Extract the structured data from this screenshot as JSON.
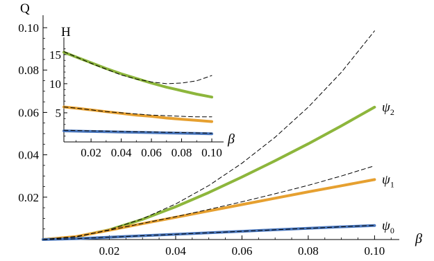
{
  "chart_data": [
    {
      "id": "main",
      "type": "line",
      "xlabel": "β",
      "ylabel": "Q",
      "xlim": [
        0,
        0.11
      ],
      "ylim": [
        0,
        0.105
      ],
      "xticks": [
        0.02,
        0.04,
        0.06,
        0.08,
        0.1
      ],
      "xtick_labels": [
        "0.02",
        "0.04",
        "0.06",
        "0.08",
        "0.10"
      ],
      "yticks": [
        0.02,
        0.04,
        0.06,
        0.08,
        0.1
      ],
      "ytick_labels": [
        "0.02",
        "0.04",
        "0.06",
        "0.08",
        "0.10"
      ],
      "series": [
        {
          "name": "ψ2",
          "label_base": "ψ",
          "label_sub": "2",
          "color": "#8db63c",
          "x": [
            0,
            0.01,
            0.02,
            0.03,
            0.04,
            0.05,
            0.06,
            0.07,
            0.08,
            0.09,
            0.1
          ],
          "y": [
            0,
            0.0013,
            0.0046,
            0.0095,
            0.0155,
            0.0222,
            0.0295,
            0.0372,
            0.0452,
            0.0537,
            0.0625
          ]
        },
        {
          "name": "ψ2 approximation",
          "color": "#000000",
          "style": "dashed",
          "x": [
            0,
            0.01,
            0.02,
            0.03,
            0.04,
            0.05,
            0.06,
            0.07,
            0.08,
            0.09,
            0.1
          ],
          "y": [
            0,
            0.0012,
            0.0046,
            0.0098,
            0.0168,
            0.0255,
            0.036,
            0.0483,
            0.0625,
            0.079,
            0.0985
          ]
        },
        {
          "name": "ψ1",
          "label_base": "ψ",
          "label_sub": "1",
          "color": "#e6a030",
          "x": [
            0,
            0.01,
            0.02,
            0.03,
            0.04,
            0.05,
            0.06,
            0.07,
            0.08,
            0.09,
            0.1
          ],
          "y": [
            0,
            0.0014,
            0.0044,
            0.0075,
            0.0105,
            0.0135,
            0.0165,
            0.0195,
            0.0225,
            0.0254,
            0.0283
          ]
        },
        {
          "name": "ψ1 approximation",
          "color": "#000000",
          "style": "dashed",
          "x": [
            0,
            0.01,
            0.02,
            0.03,
            0.04,
            0.05,
            0.06,
            0.07,
            0.08,
            0.09,
            0.1
          ],
          "y": [
            0,
            0.0014,
            0.0044,
            0.0076,
            0.0108,
            0.0142,
            0.0178,
            0.0216,
            0.0256,
            0.03,
            0.0348
          ]
        },
        {
          "name": "ψ0",
          "label_base": "ψ",
          "label_sub": "0",
          "color": "#4a77bd",
          "x": [
            0,
            0.01,
            0.02,
            0.03,
            0.04,
            0.05,
            0.06,
            0.07,
            0.08,
            0.09,
            0.1
          ],
          "y": [
            0,
            0.0004,
            0.0011,
            0.0018,
            0.0025,
            0.0032,
            0.0039,
            0.0046,
            0.0053,
            0.006,
            0.0066
          ]
        },
        {
          "name": "ψ0 approximation",
          "color": "#000000",
          "style": "dashed",
          "x": [
            0,
            0.01,
            0.02,
            0.03,
            0.04,
            0.05,
            0.06,
            0.07,
            0.08,
            0.09,
            0.1
          ],
          "y": [
            0,
            0.0004,
            0.0011,
            0.0018,
            0.0025,
            0.0032,
            0.0039,
            0.0046,
            0.0053,
            0.006,
            0.0067
          ]
        }
      ]
    },
    {
      "id": "inset",
      "type": "line",
      "xlabel": "β",
      "ylabel": "H",
      "xlim": [
        0.002,
        0.1
      ],
      "ylim": [
        0,
        17
      ],
      "xticks": [
        0.02,
        0.04,
        0.06,
        0.08,
        0.1
      ],
      "xtick_labels": [
        "0.02",
        "0.04",
        "0.06",
        "0.08",
        "0.10"
      ],
      "yticks": [
        5,
        10,
        15
      ],
      "ytick_labels": [
        "5",
        "10",
        "15"
      ],
      "series": [
        {
          "name": "ψ2",
          "color": "#8db63c",
          "x": [
            0.002,
            0.01,
            0.02,
            0.03,
            0.04,
            0.05,
            0.06,
            0.07,
            0.08,
            0.09,
            0.1
          ],
          "y": [
            15.4,
            14.6,
            13.6,
            12.6,
            11.7,
            10.9,
            10.1,
            9.4,
            8.8,
            8.2,
            7.7
          ]
        },
        {
          "name": "ψ2 approximation",
          "color": "#000000",
          "style": "dashed",
          "x": [
            0.002,
            0.01,
            0.02,
            0.03,
            0.04,
            0.05,
            0.06,
            0.07,
            0.08,
            0.09,
            0.1
          ],
          "y": [
            15.5,
            14.6,
            13.5,
            12.5,
            11.5,
            10.8,
            10.3,
            10.0,
            10.1,
            10.5,
            11.4
          ]
        },
        {
          "name": "ψ1",
          "color": "#e6a030",
          "x": [
            0.002,
            0.01,
            0.02,
            0.03,
            0.04,
            0.05,
            0.06,
            0.07,
            0.08,
            0.09,
            0.1
          ],
          "y": [
            6.0,
            5.8,
            5.5,
            5.2,
            4.9,
            4.6,
            4.4,
            4.1,
            3.9,
            3.7,
            3.5
          ]
        },
        {
          "name": "ψ1 approximation",
          "color": "#000000",
          "style": "dashed",
          "x": [
            0.002,
            0.01,
            0.02,
            0.03,
            0.04,
            0.05,
            0.06,
            0.07,
            0.08,
            0.09,
            0.1
          ],
          "y": [
            6.0,
            5.8,
            5.5,
            5.2,
            5.0,
            4.8,
            4.6,
            4.5,
            4.4,
            4.3,
            4.3
          ]
        },
        {
          "name": "ψ0",
          "color": "#4a77bd",
          "x": [
            0.002,
            0.01,
            0.02,
            0.03,
            0.04,
            0.05,
            0.06,
            0.07,
            0.08,
            0.09,
            0.1
          ],
          "y": [
            1.9,
            1.85,
            1.8,
            1.75,
            1.7,
            1.65,
            1.6,
            1.55,
            1.5,
            1.45,
            1.4
          ]
        },
        {
          "name": "ψ0 approximation",
          "color": "#000000",
          "style": "dashed",
          "x": [
            0.002,
            0.01,
            0.02,
            0.03,
            0.04,
            0.05,
            0.06,
            0.07,
            0.08,
            0.09,
            0.1
          ],
          "y": [
            2.0,
            1.95,
            1.9,
            1.85,
            1.8,
            1.75,
            1.7,
            1.65,
            1.6,
            1.55,
            1.5
          ]
        }
      ]
    }
  ]
}
